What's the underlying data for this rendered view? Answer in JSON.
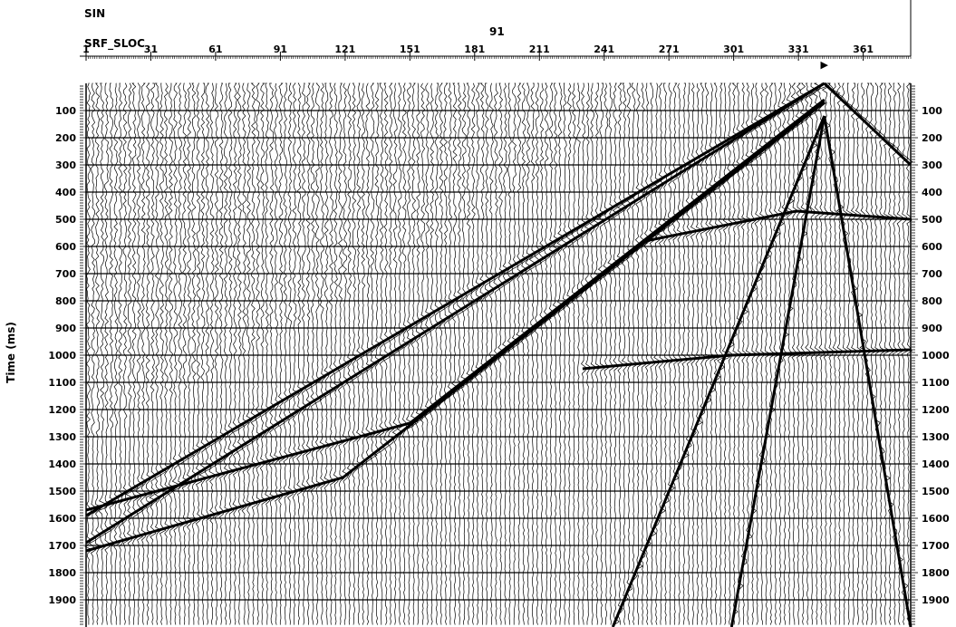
{
  "header": {
    "key1_name": "SIN",
    "key1_value": "91",
    "key2_name": "SRF_SLOC"
  },
  "chart_data": {
    "type": "seismic_wiggle",
    "ylabel": "Time (ms)",
    "x_ticks": [
      1,
      31,
      61,
      91,
      121,
      151,
      181,
      211,
      241,
      271,
      301,
      331,
      361
    ],
    "x_range": [
      1,
      383
    ],
    "y_range": [
      0,
      2000
    ],
    "y_ticks": [
      100,
      200,
      300,
      400,
      500,
      600,
      700,
      800,
      900,
      1000,
      1100,
      1200,
      1300,
      1400,
      1500,
      1600,
      1700,
      1800,
      1900
    ],
    "source_marker_sloc": 343,
    "source_marker_symbol": "▶",
    "noise_cutoff_time_ms": [
      [
        1,
        1310
      ],
      [
        91,
        930
      ],
      [
        181,
        520
      ],
      [
        241,
        180
      ],
      [
        271,
        40
      ]
    ],
    "events": [
      {
        "name": "direct-left-1",
        "points": [
          [
            343,
            0
          ],
          [
            1,
            1690
          ]
        ]
      },
      {
        "name": "direct-left-2",
        "points": [
          [
            343,
            0
          ],
          [
            1,
            1590
          ]
        ]
      },
      {
        "name": "refraction-1",
        "points": [
          [
            343,
            60
          ],
          [
            151,
            1250
          ],
          [
            1,
            1570
          ]
        ]
      },
      {
        "name": "refraction-2",
        "points": [
          [
            343,
            70
          ],
          [
            120,
            1450
          ],
          [
            1,
            1720
          ]
        ]
      },
      {
        "name": "direct-right-1",
        "points": [
          [
            343,
            0
          ],
          [
            383,
            300
          ]
        ]
      },
      {
        "name": "ground-roll-left-1",
        "points": [
          [
            343,
            120
          ],
          [
            245,
            2000
          ]
        ]
      },
      {
        "name": "ground-roll-left-2",
        "points": [
          [
            343,
            120
          ],
          [
            300,
            2000
          ]
        ]
      },
      {
        "name": "ground-roll-right-1",
        "points": [
          [
            343,
            120
          ],
          [
            383,
            2000
          ]
        ]
      },
      {
        "name": "reflection-1",
        "points": [
          [
            231,
            1050
          ],
          [
            300,
            1000
          ],
          [
            383,
            980
          ]
        ]
      },
      {
        "name": "reflection-2",
        "points": [
          [
            260,
            580
          ],
          [
            330,
            470
          ],
          [
            383,
            500
          ]
        ]
      }
    ]
  }
}
